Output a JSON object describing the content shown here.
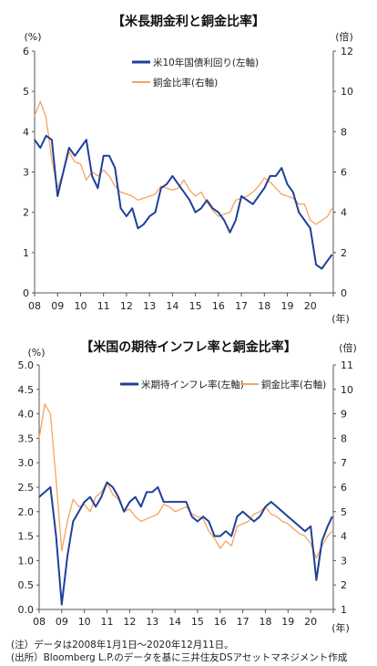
{
  "chart_data": [
    {
      "type": "line",
      "title": "【米長期金利と銅金比率】",
      "left_unit": "(%)",
      "right_unit": "(倍)",
      "x_unit": "(年)",
      "x_ticks": [
        "08",
        "09",
        "10",
        "11",
        "12",
        "13",
        "14",
        "15",
        "16",
        "17",
        "18",
        "19",
        "20"
      ],
      "y_left_lim": [
        0,
        6
      ],
      "y_left_ticks": [
        "0",
        "1",
        "2",
        "3",
        "4",
        "5",
        "6"
      ],
      "y_right_lim": [
        0,
        12
      ],
      "y_right_ticks": [
        "0",
        "2",
        "4",
        "6",
        "8",
        "10",
        "12"
      ],
      "grid": false,
      "legend_position": "top-right",
      "x": [
        2008.0,
        2008.25,
        2008.5,
        2008.75,
        2009.0,
        2009.25,
        2009.5,
        2009.75,
        2010.0,
        2010.25,
        2010.5,
        2010.75,
        2011.0,
        2011.25,
        2011.5,
        2011.75,
        2012.0,
        2012.25,
        2012.5,
        2012.75,
        2013.0,
        2013.25,
        2013.5,
        2013.75,
        2014.0,
        2014.25,
        2014.5,
        2014.75,
        2015.0,
        2015.25,
        2015.5,
        2015.75,
        2016.0,
        2016.25,
        2016.5,
        2016.75,
        2017.0,
        2017.25,
        2017.5,
        2017.75,
        2018.0,
        2018.25,
        2018.5,
        2018.75,
        2019.0,
        2019.25,
        2019.5,
        2019.75,
        2020.0,
        2020.25,
        2020.5,
        2020.75,
        2020.95
      ],
      "series": [
        {
          "name": "米10年国債利回り(左軸)",
          "axis": "left",
          "color": "#1f3f9a",
          "values": [
            3.8,
            3.6,
            3.9,
            3.8,
            2.4,
            3.0,
            3.6,
            3.4,
            3.6,
            3.8,
            2.9,
            2.6,
            3.4,
            3.4,
            3.1,
            2.1,
            1.9,
            2.1,
            1.6,
            1.7,
            1.9,
            2.0,
            2.6,
            2.7,
            2.9,
            2.7,
            2.5,
            2.3,
            2.0,
            2.1,
            2.3,
            2.1,
            2.0,
            1.8,
            1.5,
            1.8,
            2.4,
            2.3,
            2.2,
            2.4,
            2.6,
            2.9,
            2.9,
            3.1,
            2.7,
            2.5,
            2.0,
            1.8,
            1.6,
            0.7,
            0.6,
            0.8,
            0.95
          ]
        },
        {
          "name": "銅金比率(右軸)",
          "axis": "right",
          "color": "#f4a460",
          "values": [
            8.8,
            9.5,
            8.7,
            6.6,
            5.2,
            6.0,
            7.0,
            6.5,
            6.4,
            5.6,
            6.0,
            5.8,
            6.1,
            5.8,
            5.3,
            5.0,
            4.9,
            4.8,
            4.6,
            4.7,
            4.8,
            4.9,
            5.3,
            5.2,
            5.1,
            5.2,
            5.6,
            5.1,
            4.8,
            5.0,
            4.5,
            4.1,
            3.8,
            3.9,
            4.0,
            4.6,
            4.7,
            4.8,
            5.0,
            5.3,
            5.7,
            5.5,
            5.2,
            4.9,
            4.8,
            4.7,
            4.4,
            4.4,
            3.6,
            3.4,
            3.6,
            3.8,
            4.2
          ]
        }
      ]
    },
    {
      "type": "line",
      "title": "【米国の期待インフレ率と銅金比率】",
      "left_unit": "(%)",
      "right_unit": "(倍)",
      "x_unit": "(年)",
      "x_ticks": [
        "08",
        "09",
        "10",
        "11",
        "12",
        "13",
        "14",
        "15",
        "16",
        "17",
        "18",
        "19",
        "20"
      ],
      "y_left_lim": [
        0,
        5
      ],
      "y_left_ticks": [
        "0.0",
        "0.5",
        "1.0",
        "1.5",
        "2.0",
        "2.5",
        "3.0",
        "3.5",
        "4.0",
        "4.5",
        "5.0"
      ],
      "y_right_lim": [
        1,
        11
      ],
      "y_right_ticks": [
        "1",
        "2",
        "3",
        "4",
        "5",
        "6",
        "7",
        "8",
        "9",
        "10",
        "11"
      ],
      "grid": false,
      "legend_position": "top-right",
      "x": [
        2008.0,
        2008.25,
        2008.5,
        2008.75,
        2009.0,
        2009.25,
        2009.5,
        2009.75,
        2010.0,
        2010.25,
        2010.5,
        2010.75,
        2011.0,
        2011.25,
        2011.5,
        2011.75,
        2012.0,
        2012.25,
        2012.5,
        2012.75,
        2013.0,
        2013.25,
        2013.5,
        2013.75,
        2014.0,
        2014.25,
        2014.5,
        2014.75,
        2015.0,
        2015.25,
        2015.5,
        2015.75,
        2016.0,
        2016.25,
        2016.5,
        2016.75,
        2017.0,
        2017.25,
        2017.5,
        2017.75,
        2018.0,
        2018.25,
        2018.5,
        2018.75,
        2019.0,
        2019.25,
        2019.5,
        2019.75,
        2020.0,
        2020.25,
        2020.5,
        2020.75,
        2020.95
      ],
      "series": [
        {
          "name": "米期待インフレ率(左軸)",
          "axis": "left",
          "color": "#1f3f9a",
          "values": [
            2.3,
            2.4,
            2.5,
            1.5,
            0.1,
            1.1,
            1.8,
            2.0,
            2.2,
            2.3,
            2.1,
            2.3,
            2.6,
            2.5,
            2.3,
            2.0,
            2.2,
            2.3,
            2.1,
            2.4,
            2.4,
            2.5,
            2.2,
            2.2,
            2.2,
            2.2,
            2.2,
            1.9,
            1.8,
            1.9,
            1.8,
            1.5,
            1.5,
            1.6,
            1.5,
            1.9,
            2.0,
            1.9,
            1.8,
            1.9,
            2.1,
            2.2,
            2.1,
            2.0,
            1.9,
            1.8,
            1.7,
            1.6,
            1.7,
            0.6,
            1.4,
            1.7,
            1.9
          ]
        },
        {
          "name": "銅金比率(右軸)",
          "axis": "right",
          "color": "#f4a460",
          "values": [
            8.0,
            9.4,
            9.0,
            6.3,
            3.4,
            4.6,
            5.5,
            5.2,
            5.3,
            5.0,
            5.6,
            5.8,
            6.2,
            5.7,
            5.5,
            5.0,
            5.1,
            4.8,
            4.6,
            4.7,
            4.8,
            4.9,
            5.3,
            5.2,
            5.0,
            5.1,
            5.2,
            4.9,
            4.8,
            4.7,
            4.2,
            3.9,
            3.5,
            3.8,
            3.6,
            4.4,
            4.5,
            4.6,
            4.9,
            5.0,
            5.2,
            4.9,
            4.8,
            4.6,
            4.5,
            4.3,
            4.1,
            4.0,
            3.7,
            3.1,
            3.6,
            4.0,
            4.2
          ]
        }
      ]
    }
  ],
  "notes": {
    "line1": "(注）データは2008年1月1日～2020年12月11日。",
    "line2": "(出所）Bloomberg L.P.のデータを基に三井住友DSアセットマネジメント作成"
  }
}
